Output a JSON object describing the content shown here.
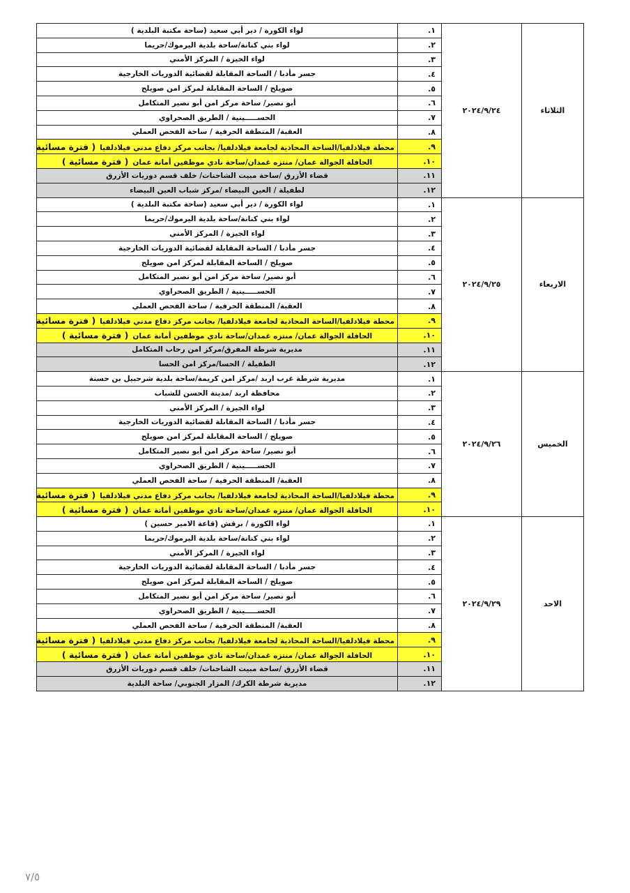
{
  "schedule": [
    {
      "day": "الثلاثاء",
      "date": "٢٠٢٤/٩/٢٤",
      "rows": [
        {
          "num": "١.",
          "text": "لواء الكورة / دير أبي سعيد (ساحة مكتبة البلدية )"
        },
        {
          "num": "٢.",
          "text": "لواء بني كنانة/ساحة بلدية اليرموك/حريما"
        },
        {
          "num": "٣.",
          "text": "لواء الجيزة / المركز الأمني"
        },
        {
          "num": "٤.",
          "text": "جسر مأدبا / الساحة المقابلة لقضائية الدوريات الخارجية"
        },
        {
          "num": "٥.",
          "text": "صويلح / الساحة المقابلة لمركز امن صويلح"
        },
        {
          "num": "٦.",
          "text": "أبو نصير/ ساحة مركز امن أبو نصير المتكامل"
        },
        {
          "num": "٧.",
          "text": "الحســـــينية / الطريق الصحراوي"
        },
        {
          "num": "٨.",
          "text": "العقبة/ المنطقة الحرفية / ساحة الفحص العملي"
        },
        {
          "num": "٩.",
          "text": "محطة فيلادلفيا/الساحة المحاذية لجامعة فيلادلفيا/ بجانب مركز دفاع مدني فيلادلفيا",
          "note": "( فترة مسائية )"
        },
        {
          "num": "١٠.",
          "text": "الحافلة الجوالة عمان/ منتزه غمدان/ساحة نادي موظفين أمانة عمان",
          "note": "( فترة مسائية )"
        },
        {
          "num": "١١.",
          "text": "قضاء الأزرق /ساحة مبيت الشاحنات/ خلف قسم دوريات الأزرق"
        },
        {
          "num": "١٢.",
          "text": "لطفيلة / العين البيضاء /مركز شباب العين البيضاء"
        }
      ]
    },
    {
      "day": "الاربعاء",
      "date": "٢٠٢٤/٩/٢٥",
      "rows": [
        {
          "num": "١.",
          "text": "لواء الكورة / دير أبي سعيد (ساحة مكتبة البلدية )"
        },
        {
          "num": "٢.",
          "text": "لواء بني كنانة/ساحة بلدية اليرموك/حريما"
        },
        {
          "num": "٣.",
          "text": "لواء الجيزة / المركز الأمني"
        },
        {
          "num": "٤.",
          "text": "جسر مأدبا / الساحة المقابلة لقضائية الدوريات الخارجية"
        },
        {
          "num": "٥.",
          "text": "صويلح / الساحة المقابلة لمركز امن صويلح"
        },
        {
          "num": "٦.",
          "text": "أبو نصير/ ساحة مركز امن أبو نصير المتكامل"
        },
        {
          "num": "٧.",
          "text": "الحســـــينية / الطريق الصحراوي"
        },
        {
          "num": "٨.",
          "text": "العقبة/ المنطقة الحرفية / ساحة الفحص العملي"
        },
        {
          "num": "٩.",
          "text": "محطة فيلادلفيا/الساحة المحاذية لجامعة فيلادلفيا/ بجانب مركز دفاع مدني فيلادلفيا",
          "note": "( فترة مسائية )"
        },
        {
          "num": "١٠.",
          "text": "الحافلة الجوالة عمان/ منتزه غمدان/ساحة نادي موظفين أمانة عمان",
          "note": "( فترة مسائية )"
        },
        {
          "num": "١١.",
          "text": "مديرية شرطة المفرق/مركز امن رحاب المتكامل"
        },
        {
          "num": "١٢.",
          "text": "الطفيلة / الحسا/مركز امن الحسا"
        }
      ]
    },
    {
      "day": "الخميس",
      "date": "٢٠٢٤/٩/٢٦",
      "rows": [
        {
          "num": "١.",
          "text": "مديرية شرطة غرب اربد /مركز امن كريمة/ساحة بلدية شرحبيل بن حسنة"
        },
        {
          "num": "٢.",
          "text": "محافظة اربد /مدينة الحسن للشباب"
        },
        {
          "num": "٣.",
          "text": "لواء الجيزة / المركز الأمني"
        },
        {
          "num": "٤.",
          "text": "جسر مأدبا / الساحة المقابلة لقضائية الدوريات الخارجية"
        },
        {
          "num": "٥.",
          "text": "صويلح / الساحة المقابلة لمركز امن صويلح"
        },
        {
          "num": "٦.",
          "text": "أبو نصير/ ساحة مركز امن أبو نصير المتكامل"
        },
        {
          "num": "٧.",
          "text": "الحســـــينية / الطريق الصحراوي"
        },
        {
          "num": "٨.",
          "text": "العقبة/ المنطقة الحرفية / ساحة الفحص العملي"
        },
        {
          "num": "٩.",
          "text": "محطة فيلادلفيا/الساحة المحاذية لجامعة فيلادلفيا/ بجانب مركز دفاع مدني فيلادلفيا",
          "note": "( فترة مسائية )"
        },
        {
          "num": "١٠.",
          "text": "الحافلة الجوالة عمان/ منتزه غمدان/ساحة نادي موظفين أمانة عمان",
          "note": "( فترة مسائية )"
        }
      ]
    },
    {
      "day": "الاحد",
      "date": "٢٠٢٤/٩/٢٩",
      "rows": [
        {
          "num": "١.",
          "text": "لواء الكورة / برقش (قاعة الامير حسين )"
        },
        {
          "num": "٢.",
          "text": "لواء بني كنانة/ساحة بلدية اليرموك/حريما"
        },
        {
          "num": "٣.",
          "text": "لواء الجيزة / المركز الأمني"
        },
        {
          "num": "٤.",
          "text": "جسر مأدبا / الساحة المقابلة لقضائية الدوريات الخارجية"
        },
        {
          "num": "٥.",
          "text": "صويلح / الساحة المقابلة لمركز امن صويلح"
        },
        {
          "num": "٦.",
          "text": "أبو نصير/ ساحة مركز امن أبو نصير المتكامل"
        },
        {
          "num": "٧.",
          "text": "الحســـــينية / الطريق الصحراوي"
        },
        {
          "num": "٨.",
          "text": "العقبة/ المنطقة الحرفية / ساحة الفحص العملي"
        },
        {
          "num": "٩.",
          "text": "محطة فيلادلفيا/الساحة المحاذية لجامعة فيلادلفيا/ بجانب مركز دفاع مدني فيلادلفيا",
          "note": "( فترة مسائية )"
        },
        {
          "num": "١٠.",
          "text": "الحافلة الجوالة عمان/ منتزه غمدان/ساحة نادي موظفين أمانة عمان",
          "note": "( فترة مسائية )"
        },
        {
          "num": "١١.",
          "text": "قضاء الأزرق /ساحة مبيت الشاحنات/ خلف قسم دوريات الأزرق"
        },
        {
          "num": "١٢.",
          "text": "مديرية شرطة الكرك/ المزار الجنوبي/ ساحة البلدية"
        }
      ]
    }
  ],
  "page_number": "٧/٥"
}
